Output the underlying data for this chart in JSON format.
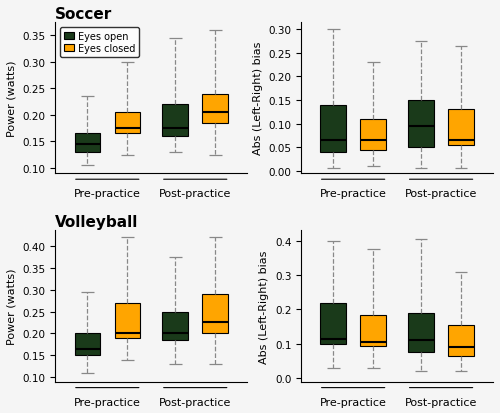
{
  "soccer_power": {
    "pre_open": {
      "whislo": 0.105,
      "q1": 0.13,
      "med": 0.145,
      "q3": 0.165,
      "whishi": 0.235
    },
    "pre_closed": {
      "whislo": 0.125,
      "q1": 0.165,
      "med": 0.175,
      "q3": 0.205,
      "whishi": 0.3
    },
    "post_open": {
      "whislo": 0.13,
      "q1": 0.16,
      "med": 0.175,
      "q3": 0.22,
      "whishi": 0.345
    },
    "post_closed": {
      "whislo": 0.125,
      "q1": 0.185,
      "med": 0.205,
      "q3": 0.24,
      "whishi": 0.36
    }
  },
  "soccer_bias": {
    "pre_open": {
      "whislo": 0.005,
      "q1": 0.04,
      "med": 0.065,
      "q3": 0.14,
      "whishi": 0.3
    },
    "pre_closed": {
      "whislo": 0.01,
      "q1": 0.045,
      "med": 0.065,
      "q3": 0.11,
      "whishi": 0.23
    },
    "post_open": {
      "whislo": 0.005,
      "q1": 0.05,
      "med": 0.095,
      "q3": 0.15,
      "whishi": 0.275
    },
    "post_closed": {
      "whislo": 0.005,
      "q1": 0.055,
      "med": 0.065,
      "q3": 0.13,
      "whishi": 0.265
    }
  },
  "volleyball_power": {
    "pre_open": {
      "whislo": 0.11,
      "q1": 0.15,
      "med": 0.165,
      "q3": 0.2,
      "whishi": 0.295
    },
    "pre_closed": {
      "whislo": 0.14,
      "q1": 0.19,
      "med": 0.2,
      "q3": 0.27,
      "whishi": 0.42
    },
    "post_open": {
      "whislo": 0.13,
      "q1": 0.185,
      "med": 0.2,
      "q3": 0.25,
      "whishi": 0.375
    },
    "post_closed": {
      "whislo": 0.13,
      "q1": 0.2,
      "med": 0.225,
      "q3": 0.29,
      "whishi": 0.42
    }
  },
  "volleyball_bias": {
    "pre_open": {
      "whislo": 0.03,
      "q1": 0.1,
      "med": 0.115,
      "q3": 0.22,
      "whishi": 0.4
    },
    "pre_closed": {
      "whislo": 0.03,
      "q1": 0.095,
      "med": 0.105,
      "q3": 0.185,
      "whishi": 0.375
    },
    "post_open": {
      "whislo": 0.02,
      "q1": 0.075,
      "med": 0.11,
      "q3": 0.19,
      "whishi": 0.405
    },
    "post_closed": {
      "whislo": 0.02,
      "q1": 0.065,
      "med": 0.09,
      "q3": 0.155,
      "whishi": 0.31
    }
  },
  "color_open": "#1a3a1a",
  "color_closed": "#FFA500",
  "ylabels_left": [
    "Power (watts)",
    "Power (watts)"
  ],
  "ylabels_right": [
    "Abs (Left-Right) bias",
    "Abs (Left-Right) bias"
  ],
  "ylim_soccer_power": [
    0.09,
    0.375
  ],
  "ylim_soccer_bias": [
    -0.005,
    0.315
  ],
  "ylim_volleyball_power": [
    0.09,
    0.435
  ],
  "ylim_volleyball_bias": [
    -0.01,
    0.43
  ],
  "yticks_soccer_power": [
    0.1,
    0.15,
    0.2,
    0.25,
    0.3,
    0.35
  ],
  "yticks_soccer_bias": [
    0.0,
    0.05,
    0.1,
    0.15,
    0.2,
    0.25,
    0.3
  ],
  "yticks_volleyball_power": [
    0.1,
    0.15,
    0.2,
    0.25,
    0.3,
    0.35,
    0.4
  ],
  "yticks_volleyball_bias": [
    0.0,
    0.1,
    0.2,
    0.3,
    0.4
  ]
}
